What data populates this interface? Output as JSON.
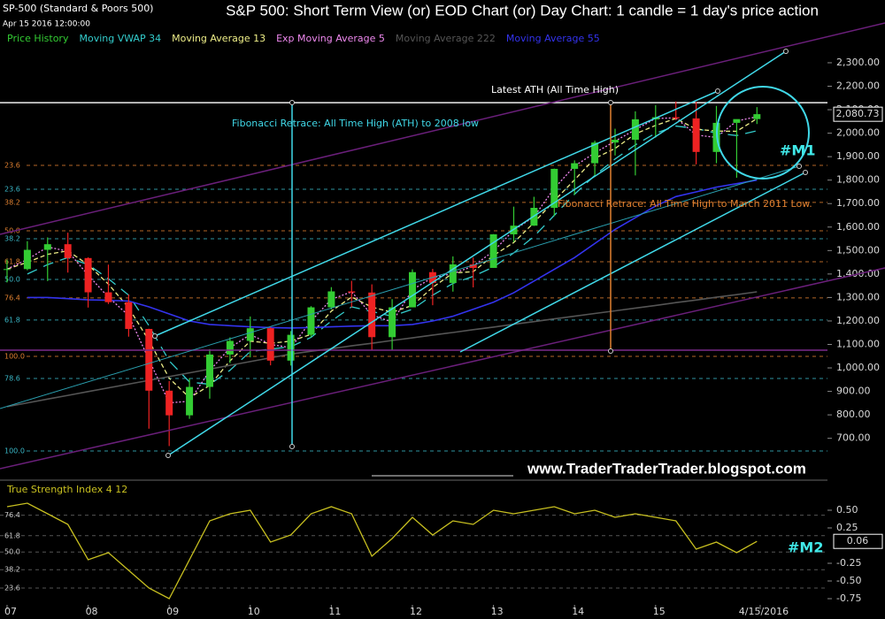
{
  "chart_data": [
    {
      "type": "candlestick",
      "title": "S&P 500: Short Term View (or) EOD Chart (or) Day Chart: 1 candle = 1 day's price action",
      "symbol": "SP-500 (Standard & Poors 500)",
      "timestamp": "Apr 15 2016 12:00:00",
      "x": [
        2007,
        2007.25,
        2007.5,
        2007.75,
        2008,
        2008.25,
        2008.5,
        2008.75,
        2009,
        2009.25,
        2009.5,
        2009.75,
        2010,
        2010.25,
        2010.5,
        2010.75,
        2011,
        2011.25,
        2011.5,
        2011.75,
        2012,
        2012.25,
        2012.5,
        2012.75,
        2013,
        2013.25,
        2013.5,
        2013.75,
        2014,
        2014.25,
        2014.5,
        2014.75,
        2015,
        2015.25,
        2015.5,
        2015.75,
        2016,
        2016.25
      ],
      "xlim": [
        2006.913,
        2017.12
      ],
      "ylim": [
        533,
        2492
      ],
      "yticks": [
        {
          "value": 700,
          "label": "700.00"
        },
        {
          "value": 800,
          "label": "800.00"
        },
        {
          "value": 900,
          "label": "900.00"
        },
        {
          "value": 1000,
          "label": "1,000.00"
        },
        {
          "value": 1100,
          "label": "1,100.00"
        },
        {
          "value": 1200,
          "label": "1,200.00"
        },
        {
          "value": 1300,
          "label": "1,300.00"
        },
        {
          "value": 1400,
          "label": "1,400.00"
        },
        {
          "value": 1500,
          "label": "1,500.00"
        },
        {
          "value": 1600,
          "label": "1,600.00"
        },
        {
          "value": 1700,
          "label": "1,700.00"
        },
        {
          "value": 1800,
          "label": "1,800.00"
        },
        {
          "value": 1900,
          "label": "1,900.00"
        },
        {
          "value": 2000,
          "label": "2,000.00"
        },
        {
          "value": 2100,
          "label": "2,100.00"
        },
        {
          "value": 2200,
          "label": "2,200.00"
        },
        {
          "value": 2300,
          "label": "2,300.00"
        }
      ],
      "candles": {
        "name": "Price History",
        "color": "#33cc33",
        "down_color": "#ee2222",
        "open": [
          1418,
          1421,
          1503,
          1527,
          1468,
          1322,
          1280,
          1166,
          903,
          798,
          919,
          1057,
          1115,
          1169,
          1031,
          1141,
          1258,
          1326,
          1321,
          1131,
          1258,
          1408,
          1362,
          1441,
          1426,
          1569,
          1606,
          1682,
          1848,
          1872,
          1960,
          1972,
          2059,
          2068,
          2063,
          1920,
          2044,
          2060
        ],
        "high": [
          1461,
          1540,
          1556,
          1576,
          1471,
          1440,
          1313,
          1167,
          944,
          956,
          1080,
          1130,
          1219,
          1173,
          1157,
          1263,
          1344,
          1371,
          1356,
          1293,
          1420,
          1422,
          1475,
          1470,
          1570,
          1687,
          1729,
          1849,
          1884,
          1968,
          2019,
          2093,
          2119,
          2135,
          2133,
          2116,
          2044,
          2111
        ],
        "low": [
          1364,
          1416,
          1370,
          1406,
          1257,
          1272,
          1133,
          741,
          667,
          783,
          869,
          1020,
          1045,
          1011,
          1010,
          1131,
          1249,
          1258,
          1075,
          1075,
          1258,
          1267,
          1325,
          1343,
          1426,
          1536,
          1605,
          1647,
          1737,
          1814,
          1905,
          1820,
          1981,
          2056,
          1867,
          1872,
          1810,
          2039
        ],
        "close": [
          1421,
          1503,
          1527,
          1468,
          1322,
          1280,
          1166,
          903,
          798,
          919,
          1057,
          1115,
          1169,
          1031,
          1141,
          1258,
          1326,
          1321,
          1131,
          1258,
          1408,
          1362,
          1441,
          1426,
          1569,
          1606,
          1682,
          1848,
          1872,
          1960,
          1972,
          2059,
          2068,
          2063,
          1920,
          2044,
          2060,
          2081
        ]
      },
      "series": [
        {
          "name": "Moving VWAP 34",
          "color": "#33cccc",
          "style": "dashed",
          "values": [
            null,
            1400,
            1440,
            1470,
            1440,
            1380,
            1310,
            1180,
            1030,
            940,
            930,
            990,
            1070,
            1080,
            1090,
            1130,
            1200,
            1260,
            1240,
            1220,
            1250,
            1310,
            1360,
            1390,
            1430,
            1490,
            1560,
            1650,
            1740,
            1820,
            1890,
            1950,
            2000,
            2030,
            2020,
            2000,
            1990,
            2010
          ]
        },
        {
          "name": "Moving Average 13",
          "color": "#eeee88",
          "style": "dashed-short",
          "values": [
            1421,
            1450,
            1484,
            1499,
            1439,
            1357,
            1256,
            1116,
            956,
            873,
            925,
            1030,
            1114,
            1105,
            1114,
            1143,
            1242,
            1302,
            1259,
            1237,
            1266,
            1343,
            1404,
            1410,
            1479,
            1534,
            1619,
            1712,
            1801,
            1893,
            1935,
            1997,
            2033,
            2063,
            2017,
            2009,
            2008,
            2062
          ]
        },
        {
          "name": "Exp Moving Average 5",
          "color": "#ee88ee",
          "style": "dotted",
          "values": [
            1421,
            1462,
            1515,
            1497,
            1395,
            1301,
            1223,
            1035,
            851,
            858,
            988,
            1086,
            1142,
            1100,
            1086,
            1200,
            1292,
            1324,
            1226,
            1195,
            1333,
            1385,
            1401,
            1434,
            1497,
            1587,
            1644,
            1765,
            1860,
            1916,
            1966,
            2015,
            2063,
            2065,
            1992,
            1982,
            2052,
            2070
          ]
        },
        {
          "name": "Moving Average 222",
          "color": "#555555",
          "style": "solid",
          "values": [
            835,
            851,
            867,
            883,
            899,
            915,
            931,
            947,
            963,
            979,
            995,
            1011,
            1027,
            1043,
            1059,
            1071,
            1082,
            1094,
            1105,
            1117,
            1128,
            1140,
            1151,
            1163,
            1174,
            1186,
            1197,
            1209,
            1220,
            1232,
            1243,
            1255,
            1266,
            1278,
            1289,
            1301,
            1312,
            1324
          ]
        },
        {
          "name": "Moving Average 55",
          "color": "#3333ee",
          "style": "solid",
          "values": [
            null,
            1300,
            1300,
            1295,
            1290,
            1288,
            1285,
            1260,
            1230,
            1200,
            1185,
            1180,
            1175,
            1172,
            1170,
            1172,
            1175,
            1178,
            1180,
            1180,
            1185,
            1200,
            1220,
            1250,
            1280,
            1320,
            1370,
            1420,
            1470,
            1530,
            1590,
            1640,
            1690,
            1730,
            1750,
            1770,
            1785,
            1800
          ]
        }
      ],
      "last_value": {
        "value": 2080.73,
        "label": "2,080.73"
      },
      "ath": {
        "value": 2130,
        "label": "Latest ATH (All Time High)"
      },
      "fib_retracements": [
        {
          "name": "Fibonacci Retrace: All Time High (ATH) to 2008 low",
          "color": "#3ab8c8",
          "levels": [
            {
              "value": 1761,
              "label": "23.6"
            },
            {
              "value": 1550,
              "label": "38.2"
            },
            {
              "value": 1377,
              "label": "50.0"
            },
            {
              "value": 1204,
              "label": "61.8"
            },
            {
              "value": 955,
              "label": "78.6"
            },
            {
              "value": 646,
              "label": "100.0"
            }
          ]
        },
        {
          "name": "Fibonacci Retrace: All Time High to March 2011 Low.",
          "color": "#e08030",
          "levels": [
            {
              "value": 1863,
              "label": "23.6"
            },
            {
              "value": 1705,
              "label": "38.2"
            },
            {
              "value": 1584,
              "label": "50.0"
            },
            {
              "value": 1452,
              "label": "61.8"
            },
            {
              "value": 1298,
              "label": "76.4"
            },
            {
              "value": 1049,
              "label": "100.0"
            }
          ]
        }
      ],
      "annotations": [
        "#M1",
        "www.TraderTraderTrader.blogspot.com"
      ]
    },
    {
      "type": "line",
      "x": [
        2007,
        2007.25,
        2007.5,
        2007.75,
        2008,
        2008.25,
        2008.5,
        2008.75,
        2009,
        2009.25,
        2009.5,
        2009.75,
        2010,
        2010.25,
        2010.5,
        2010.75,
        2011,
        2011.25,
        2011.5,
        2011.75,
        2012,
        2012.25,
        2012.5,
        2012.75,
        2013,
        2013.25,
        2013.5,
        2013.75,
        2014,
        2014.25,
        2014.5,
        2014.75,
        2015,
        2015.25,
        2015.5,
        2015.75,
        2016,
        2016.25
      ],
      "xlim": [
        2006.913,
        2017.12
      ],
      "xticks": [
        {
          "value": 2007,
          "label": "07"
        },
        {
          "value": 2008,
          "label": "08"
        },
        {
          "value": 2009,
          "label": "09"
        },
        {
          "value": 2010,
          "label": "10"
        },
        {
          "value": 2011,
          "label": "11"
        },
        {
          "value": 2012,
          "label": "12"
        },
        {
          "value": 2013,
          "label": "13"
        },
        {
          "value": 2014,
          "label": "14"
        },
        {
          "value": 2015,
          "label": "15"
        },
        {
          "value": 2016.29,
          "label": "4/15/2016"
        }
      ],
      "ylim": [
        -0.9,
        0.9
      ],
      "yticks": [
        {
          "value": 0.5,
          "label": "0.50"
        },
        0.25,
        -0.25,
        {
          "value": -0.5,
          "label": "-0.50"
        },
        {
          "value": -0.75,
          "label": "-0.75"
        }
      ],
      "levels": [
        {
          "value": 0.43,
          "label": "76.4"
        },
        {
          "value": 0.14,
          "label": "61.8"
        },
        {
          "value": -0.09,
          "label": "50.0"
        },
        {
          "value": -0.34,
          "label": "38.2"
        },
        {
          "value": -0.6,
          "label": "23.6"
        }
      ],
      "series": [
        {
          "name": "True Strength Index 4 12",
          "color": "#c8c020",
          "values": [
            0.55,
            0.6,
            0.45,
            0.3,
            -0.2,
            -0.1,
            -0.35,
            -0.6,
            -0.75,
            -0.2,
            0.35,
            0.45,
            0.5,
            0.05,
            0.15,
            0.45,
            0.55,
            0.45,
            -0.15,
            0.1,
            0.4,
            0.15,
            0.35,
            0.3,
            0.5,
            0.45,
            0.5,
            0.55,
            0.45,
            0.5,
            0.4,
            0.45,
            0.4,
            0.35,
            -0.05,
            0.05,
            -0.1,
            0.06
          ]
        }
      ],
      "last_value": {
        "value": 0.06,
        "label": "0.06"
      },
      "annotations": [
        "#M2"
      ]
    }
  ]
}
